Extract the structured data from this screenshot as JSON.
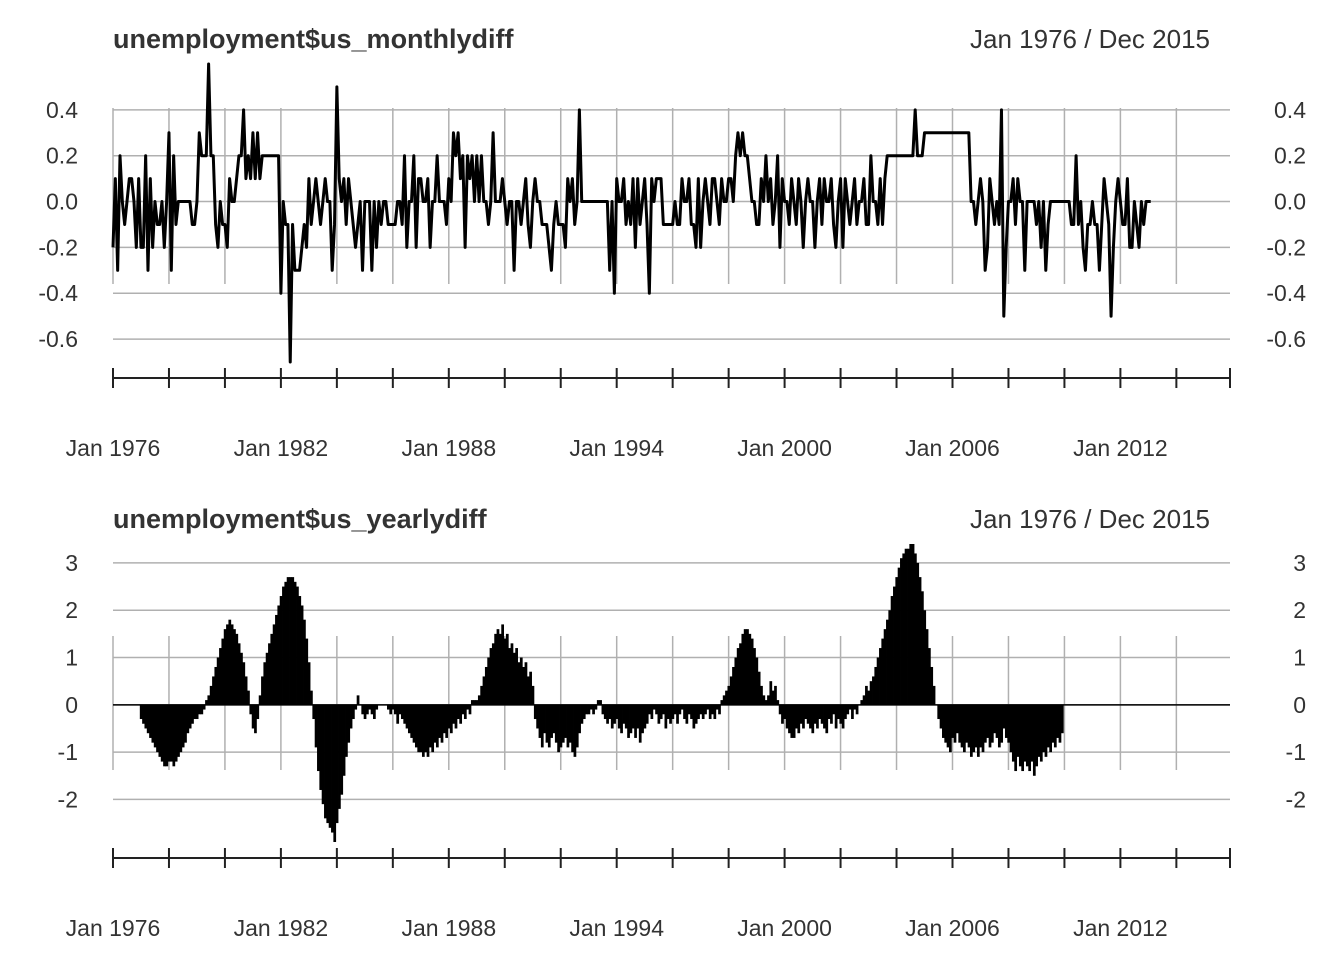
{
  "chart_data": [
    {
      "type": "line",
      "title": "unemployment$us_monthlydiff",
      "date_range": "Jan 1976 / Dec 2015",
      "ylim": [
        -0.7,
        0.6
      ],
      "y_ticks": [
        "0.4",
        "0.2",
        "0.0",
        "-0.2",
        "-0.4",
        "-0.6"
      ],
      "y_tick_values": [
        0.4,
        0.2,
        0.0,
        -0.2,
        -0.4,
        -0.6
      ],
      "x_ticks": [
        "Jan 1976",
        "Jan 1982",
        "Jan 1988",
        "Jan 1994",
        "Jan 2000",
        "Jan 2006",
        "Jan 2012"
      ],
      "x_start": "1976-01",
      "grid": true,
      "series": [
        {
          "values": [
            -0.2,
            0.1,
            -0.3,
            0.2,
            0.0,
            -0.1,
            0.0,
            0.1,
            0.1,
            0.0,
            -0.2,
            0.1,
            -0.2,
            -0.2,
            0.2,
            -0.3,
            0.1,
            -0.2,
            0.0,
            -0.1,
            -0.1,
            0.0,
            -0.2,
            0.0,
            0.3,
            -0.3,
            0.2,
            -0.1,
            0.0,
            0.0,
            0.0,
            0.0,
            0.0,
            0.0,
            -0.1,
            -0.1,
            0.0,
            0.3,
            0.2,
            0.2,
            0.2,
            0.6,
            0.2,
            0.2,
            -0.1,
            -0.2,
            0.0,
            -0.1,
            -0.1,
            -0.2,
            0.1,
            0.0,
            0.0,
            0.1,
            0.2,
            0.2,
            0.4,
            0.1,
            0.2,
            0.1,
            0.3,
            0.1,
            0.3,
            0.1,
            0.2,
            0.2,
            0.2,
            0.2,
            0.2,
            0.2,
            0.2,
            0.2,
            -0.4,
            0.0,
            -0.1,
            -0.1,
            -0.7,
            -0.1,
            -0.3,
            -0.3,
            -0.3,
            -0.2,
            -0.1,
            -0.2,
            0.1,
            -0.1,
            0.0,
            0.1,
            0.0,
            -0.1,
            0.0,
            0.1,
            0.0,
            0.0,
            -0.3,
            -0.1,
            0.5,
            0.1,
            0.0,
            0.1,
            -0.1,
            0.1,
            0.0,
            -0.1,
            -0.2,
            -0.1,
            0.0,
            -0.3,
            0.0,
            0.0,
            0.0,
            -0.3,
            0.0,
            -0.2,
            0.0,
            -0.1,
            0.0,
            0.0,
            -0.1,
            -0.1,
            -0.1,
            -0.1,
            0.0,
            0.0,
            -0.1,
            0.2,
            -0.2,
            0.0,
            0.0,
            0.2,
            -0.2,
            0.1,
            0.1,
            0.0,
            0.0,
            0.1,
            -0.2,
            0.0,
            0.0,
            0.2,
            0.0,
            0.0,
            0.0,
            -0.1,
            0.1,
            0.0,
            0.3,
            0.2,
            0.3,
            0.1,
            0.2,
            -0.2,
            0.2,
            0.1,
            0.2,
            0.0,
            0.2,
            0.0,
            0.2,
            0.0,
            0.0,
            -0.1,
            0.0,
            0.3,
            0.0,
            0.0,
            0.0,
            0.1,
            0.0,
            -0.1,
            0.0,
            0.0,
            -0.3,
            0.0,
            0.0,
            -0.1,
            0.0,
            0.1,
            -0.1,
            -0.2,
            0.0,
            0.1,
            0.0,
            0.0,
            -0.1,
            -0.1,
            -0.1,
            -0.2,
            -0.3,
            -0.1,
            0.0,
            -0.1,
            -0.1,
            -0.1,
            -0.2,
            0.1,
            0.0,
            0.1,
            -0.1,
            0.0,
            0.4,
            0.0,
            0.0,
            0.0,
            0.0,
            0.0,
            0.0,
            0.0,
            0.0,
            0.0,
            0.0,
            0.0,
            0.0,
            -0.3,
            0.0,
            -0.4,
            0.1,
            0.0,
            0.0,
            0.1,
            -0.1,
            0.0,
            -0.1,
            0.1,
            -0.2,
            0.1,
            -0.1,
            0.0,
            0.1,
            -0.1,
            -0.4,
            0.1,
            0.0,
            0.1,
            0.1,
            0.1,
            -0.1,
            -0.1,
            -0.1,
            -0.1,
            -0.1,
            0.0,
            -0.1,
            -0.1,
            0.1,
            0.0,
            0.0,
            0.1,
            -0.1,
            -0.1,
            -0.2,
            0.1,
            -0.2,
            0.0,
            0.1,
            0.0,
            -0.1,
            0.1,
            0.1,
            0.0,
            -0.1,
            0.1,
            0.0,
            0.0,
            0.1,
            0.1,
            0.0,
            0.2,
            0.3,
            0.2,
            0.3,
            0.2,
            0.2,
            0.1,
            0.0,
            0.0,
            -0.1,
            -0.1,
            0.1,
            0.0,
            0.2,
            0.0,
            0.1,
            -0.1,
            0.0,
            0.2,
            -0.2,
            0.1,
            0.0,
            0.0,
            -0.1,
            0.1,
            0.0,
            -0.1,
            0.1,
            0.0,
            -0.2,
            0.0,
            0.1,
            0.0,
            0.0,
            -0.2,
            0.0,
            0.1,
            -0.1,
            0.1,
            0.0,
            0.0,
            0.1,
            -0.1,
            -0.2,
            0.0,
            0.1,
            -0.2,
            0.1,
            0.0,
            -0.1,
            0.0,
            0.1,
            -0.1,
            0.0,
            0.0,
            0.1,
            -0.1,
            -0.1,
            0.2,
            0.0,
            0.0,
            -0.1,
            0.1,
            -0.1,
            0.1,
            0.2,
            0.2,
            0.2,
            0.2,
            0.2,
            0.2,
            0.2,
            0.2,
            0.2,
            0.2,
            0.2,
            0.2,
            0.4,
            0.2,
            0.2,
            0.2,
            0.3,
            0.3,
            0.3,
            0.3,
            0.3,
            0.3,
            0.3,
            0.3,
            0.3,
            0.3,
            0.3,
            0.3,
            0.3,
            0.3,
            0.3,
            0.3,
            0.3,
            0.3,
            0.3,
            0.3,
            0.0,
            0.0,
            -0.1,
            0.0,
            0.1,
            0.0,
            -0.3,
            -0.2,
            0.1,
            0.0,
            -0.1,
            0.0,
            -0.1,
            0.4,
            -0.5,
            -0.2,
            0.0,
            0.0,
            0.1,
            -0.1,
            0.1,
            0.0,
            0.0,
            -0.3,
            0.0,
            0.0,
            0.0,
            0.0,
            -0.1,
            0.0,
            -0.2,
            0.0,
            -0.3,
            -0.1,
            0.0,
            0.0,
            0.0,
            0.0,
            0.0,
            0.0,
            0.0,
            0.0,
            0.0,
            -0.1,
            -0.1,
            0.2,
            -0.1,
            0.0,
            -0.2,
            -0.3,
            -0.1,
            -0.1,
            0.0,
            -0.1,
            -0.1,
            -0.3,
            -0.1,
            0.1,
            0.0,
            -0.1,
            -0.5,
            -0.2,
            0.0,
            0.1,
            0.0,
            -0.1,
            -0.1,
            0.1,
            -0.2,
            -0.2,
            0.0,
            -0.1,
            -0.2,
            0.0,
            -0.1,
            0.0,
            0.0,
            0.0
          ]
        }
      ]
    },
    {
      "type": "bar",
      "title": "unemployment$us_yearlydiff",
      "date_range": "Jan 1976 / Dec 2015",
      "ylim": [
        -2.9,
        3.4
      ],
      "y_ticks": [
        "3",
        "2",
        "1",
        "0",
        "-1",
        "-2"
      ],
      "y_tick_values": [
        3,
        2,
        1,
        0,
        -1,
        -2
      ],
      "x_ticks": [
        "Jan 1976",
        "Jan 1982",
        "Jan 1988",
        "Jan 1994",
        "Jan 2000",
        "Jan 2006",
        "Jan 2012"
      ],
      "x_start": "1976-01",
      "grid": true,
      "series": [
        {
          "values": [
            0,
            0,
            0,
            0,
            0,
            0,
            0,
            0,
            0,
            0,
            0,
            0,
            -0.3,
            -0.4,
            -0.5,
            -0.6,
            -0.7,
            -0.8,
            -0.9,
            -1.0,
            -1.1,
            -1.2,
            -1.3,
            -1.3,
            -1.2,
            -1.2,
            -1.3,
            -1.2,
            -1.1,
            -1.0,
            -0.9,
            -0.8,
            -0.6,
            -0.5,
            -0.4,
            -0.3,
            -0.3,
            -0.2,
            -0.2,
            -0.1,
            0.1,
            0.2,
            0.4,
            0.6,
            0.8,
            1.0,
            1.2,
            1.4,
            1.6,
            1.7,
            1.8,
            1.7,
            1.6,
            1.5,
            1.3,
            1.1,
            0.9,
            0.6,
            0.3,
            -0.2,
            -0.5,
            -0.6,
            -0.3,
            0.2,
            0.6,
            0.9,
            1.1,
            1.3,
            1.5,
            1.7,
            1.9,
            2.1,
            2.3,
            2.5,
            2.6,
            2.7,
            2.7,
            2.7,
            2.6,
            2.5,
            2.3,
            2.1,
            1.8,
            1.4,
            0.9,
            0.3,
            -0.3,
            -0.9,
            -1.4,
            -1.8,
            -2.1,
            -2.4,
            -2.5,
            -2.6,
            -2.7,
            -2.9,
            -2.5,
            -2.2,
            -1.9,
            -1.5,
            -1.1,
            -0.8,
            -0.5,
            -0.3,
            -0.1,
            0.2,
            0.0,
            -0.2,
            -0.3,
            -0.2,
            -0.1,
            -0.2,
            -0.3,
            -0.1,
            0.0,
            0.0,
            0.0,
            0.0,
            -0.1,
            -0.2,
            -0.1,
            -0.2,
            -0.4,
            -0.2,
            -0.3,
            -0.4,
            -0.5,
            -0.6,
            -0.7,
            -0.8,
            -0.9,
            -1.0,
            -1.0,
            -1.1,
            -1.0,
            -1.1,
            -0.9,
            -1.0,
            -0.8,
            -0.9,
            -0.7,
            -0.8,
            -0.6,
            -0.7,
            -0.5,
            -0.6,
            -0.4,
            -0.5,
            -0.3,
            -0.4,
            -0.2,
            -0.3,
            -0.1,
            -0.2,
            0.1,
            0.1,
            0.1,
            0.2,
            0.4,
            0.6,
            0.8,
            1.0,
            1.2,
            1.3,
            1.5,
            1.6,
            1.5,
            1.7,
            1.4,
            1.5,
            1.2,
            1.3,
            1.1,
            1.2,
            0.9,
            1.0,
            0.8,
            0.9,
            0.6,
            0.7,
            0.4,
            -0.3,
            -0.5,
            -0.7,
            -0.9,
            -0.6,
            -0.8,
            -0.9,
            -0.7,
            -0.6,
            -0.8,
            -1.0,
            -0.9,
            -0.8,
            -0.7,
            -0.9,
            -0.8,
            -1.0,
            -1.1,
            -0.9,
            -0.6,
            -0.4,
            -0.3,
            -0.2,
            -0.2,
            -0.1,
            -0.2,
            -0.1,
            0.1,
            0.1,
            -0.2,
            -0.3,
            -0.4,
            -0.3,
            -0.5,
            -0.4,
            -0.3,
            -0.5,
            -0.6,
            -0.4,
            -0.5,
            -0.7,
            -0.6,
            -0.5,
            -0.7,
            -0.5,
            -0.8,
            -0.6,
            -0.5,
            -0.4,
            -0.2,
            -0.3,
            -0.1,
            -0.2,
            -0.4,
            -0.3,
            -0.2,
            -0.5,
            -0.3,
            -0.4,
            -0.3,
            -0.2,
            -0.4,
            -0.2,
            -0.1,
            -0.3,
            -0.4,
            -0.2,
            -0.3,
            -0.5,
            -0.4,
            -0.3,
            -0.2,
            -0.3,
            -0.2,
            -0.1,
            -0.3,
            -0.2,
            -0.3,
            -0.1,
            -0.2,
            0.1,
            0.2,
            0.3,
            0.4,
            0.6,
            0.8,
            1.0,
            1.2,
            1.3,
            1.5,
            1.6,
            1.6,
            1.5,
            1.4,
            1.2,
            1.0,
            0.7,
            0.4,
            0.2,
            0.1,
            0.2,
            0.5,
            0.3,
            0.4,
            0.1,
            -0.2,
            -0.4,
            -0.3,
            -0.5,
            -0.6,
            -0.7,
            -0.7,
            -0.5,
            -0.6,
            -0.4,
            -0.5,
            -0.3,
            -0.4,
            -0.5,
            -0.6,
            -0.4,
            -0.5,
            -0.3,
            -0.4,
            -0.5,
            -0.6,
            -0.3,
            -0.4,
            -0.2,
            -0.5,
            -0.3,
            -0.4,
            -0.5,
            -0.3,
            -0.2,
            -0.1,
            -0.3,
            -0.1,
            -0.2,
            0.0,
            0.1,
            0.2,
            0.4,
            0.3,
            0.5,
            0.6,
            0.8,
            1.0,
            1.2,
            1.4,
            1.6,
            1.8,
            2.0,
            2.3,
            2.5,
            2.7,
            2.9,
            3.1,
            3.2,
            3.3,
            3.3,
            3.4,
            3.4,
            3.2,
            3.0,
            2.7,
            2.4,
            2.0,
            1.6,
            1.2,
            0.8,
            0.4,
            0.0,
            -0.3,
            -0.5,
            -0.7,
            -0.8,
            -0.9,
            -1.0,
            -0.7,
            -0.8,
            -0.6,
            -0.8,
            -0.9,
            -1.0,
            -0.8,
            -0.9,
            -1.1,
            -1.0,
            -0.9,
            -1.1,
            -0.9,
            -1.0,
            -0.8,
            -0.7,
            -0.9,
            -0.8,
            -0.6,
            -0.7,
            -0.9,
            -0.8,
            -0.5,
            -0.7,
            -0.8,
            -1.0,
            -1.2,
            -1.4,
            -1.1,
            -1.3,
            -1.4,
            -1.2,
            -1.3,
            -1.4,
            -1.2,
            -1.5,
            -1.3,
            -1.1,
            -1.2,
            -1.0,
            -1.1,
            -0.9,
            -1.0,
            -0.8,
            -0.9,
            -0.7,
            -0.8,
            -0.6
          ]
        }
      ]
    }
  ]
}
